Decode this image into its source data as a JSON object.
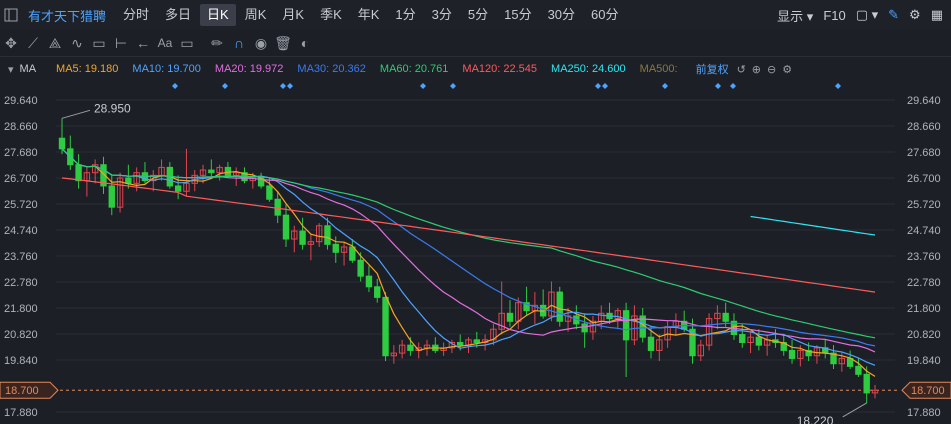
{
  "header": {
    "stock_name": "有才天下猎聘",
    "periods": [
      "分时",
      "多日",
      "日K",
      "周K",
      "月K",
      "季K",
      "年K",
      "1分",
      "3分",
      "5分",
      "15分",
      "30分",
      "60分"
    ],
    "active_period": "日K",
    "display_label": "显示",
    "f10_label": "F10"
  },
  "toolbar": {
    "icons": [
      "crosshair-icon",
      "line-tool-icon",
      "multi-line-tool-icon",
      "wave-tool-icon",
      "rect-tool-icon",
      "range-tool-icon",
      "arrow-tool-icon",
      "text-tool-icon",
      "comment-tool-icon",
      "pen-icon",
      "magnet-icon",
      "eye-icon",
      "trash-icon",
      "toggle-icon"
    ]
  },
  "ma_bar": {
    "label": "MA",
    "items": [
      {
        "text": "MA5: 19.180",
        "color": "#f5a623"
      },
      {
        "text": "MA10: 19.700",
        "color": "#4ea3ff"
      },
      {
        "text": "MA20: 19.972",
        "color": "#e36ee0"
      },
      {
        "text": "MA30: 20.362",
        "color": "#3a7bf0"
      },
      {
        "text": "MA60: 20.761",
        "color": "#2ecc71"
      },
      {
        "text": "MA120: 22.545",
        "color": "#ff5a5a"
      },
      {
        "text": "MA250: 24.600",
        "color": "#2ee6f0"
      },
      {
        "text": "MA500:",
        "color": "#8a7a3a"
      }
    ],
    "adjust_label": "前复权"
  },
  "chart_data": {
    "type": "candlestick",
    "y_ticks": [
      "29.640",
      "28.660",
      "27.680",
      "26.700",
      "25.720",
      "24.740",
      "23.760",
      "22.780",
      "21.800",
      "20.820",
      "19.840",
      "18.700",
      "17.880"
    ],
    "y_range": [
      17.88,
      29.64
    ],
    "current_price": "18.700",
    "max_label": "28.950",
    "min_label": "18.220",
    "colors": {
      "up": "#e0464f",
      "down": "#2ecc40",
      "grid": "#2a2e36",
      "bg": "#1c1f26"
    },
    "ohlc": [
      [
        28.2,
        28.95,
        27.6,
        27.8
      ],
      [
        27.8,
        28.3,
        27.0,
        27.2
      ],
      [
        27.2,
        27.6,
        26.3,
        26.6
      ],
      [
        26.6,
        27.1,
        26.0,
        26.9
      ],
      [
        26.9,
        27.4,
        26.5,
        27.2
      ],
      [
        27.2,
        27.5,
        26.1,
        26.4
      ],
      [
        26.4,
        26.8,
        25.3,
        25.6
      ],
      [
        25.6,
        26.9,
        25.4,
        26.7
      ],
      [
        26.7,
        27.2,
        26.3,
        26.5
      ],
      [
        26.5,
        27.1,
        26.2,
        26.9
      ],
      [
        26.9,
        27.3,
        26.5,
        26.6
      ],
      [
        26.6,
        27.0,
        26.2,
        26.8
      ],
      [
        26.8,
        27.4,
        26.6,
        27.1
      ],
      [
        27.1,
        27.3,
        26.3,
        26.4
      ],
      [
        26.4,
        26.8,
        25.9,
        26.2
      ],
      [
        26.2,
        27.8,
        26.0,
        26.5
      ],
      [
        26.5,
        27.0,
        26.2,
        26.8
      ],
      [
        26.8,
        27.2,
        26.5,
        27.0
      ],
      [
        27.0,
        27.4,
        26.7,
        26.9
      ],
      [
        26.9,
        27.2,
        26.6,
        27.1
      ],
      [
        27.1,
        27.3,
        26.7,
        26.8
      ],
      [
        26.8,
        27.1,
        26.4,
        26.9
      ],
      [
        26.9,
        27.1,
        26.5,
        26.6
      ],
      [
        26.6,
        26.9,
        26.3,
        26.7
      ],
      [
        26.7,
        26.9,
        26.3,
        26.4
      ],
      [
        26.4,
        26.7,
        25.8,
        25.9
      ],
      [
        25.9,
        26.2,
        25.0,
        25.3
      ],
      [
        25.3,
        25.7,
        24.1,
        24.4
      ],
      [
        24.4,
        24.9,
        23.9,
        24.7
      ],
      [
        24.7,
        25.2,
        24.0,
        24.2
      ],
      [
        24.2,
        24.6,
        23.6,
        24.3
      ],
      [
        24.3,
        25.0,
        24.1,
        24.9
      ],
      [
        24.9,
        25.2,
        24.0,
        24.2
      ],
      [
        24.2,
        24.5,
        23.5,
        23.9
      ],
      [
        23.9,
        24.3,
        23.4,
        24.1
      ],
      [
        24.1,
        24.4,
        23.5,
        23.6
      ],
      [
        23.6,
        23.9,
        22.8,
        23.0
      ],
      [
        23.0,
        23.4,
        22.4,
        22.6
      ],
      [
        22.6,
        22.9,
        22.0,
        22.2
      ],
      [
        22.2,
        22.4,
        19.8,
        20.0
      ],
      [
        20.0,
        20.4,
        19.7,
        20.1
      ],
      [
        20.1,
        20.6,
        19.9,
        20.4
      ],
      [
        20.4,
        20.7,
        20.0,
        20.2
      ],
      [
        20.2,
        20.5,
        19.9,
        20.3
      ],
      [
        20.3,
        20.6,
        20.0,
        20.4
      ],
      [
        20.4,
        20.7,
        20.1,
        20.2
      ],
      [
        20.2,
        20.5,
        20.0,
        20.3
      ],
      [
        20.3,
        20.6,
        20.1,
        20.5
      ],
      [
        20.5,
        20.8,
        20.2,
        20.4
      ],
      [
        20.4,
        20.7,
        20.1,
        20.6
      ],
      [
        20.6,
        20.9,
        20.3,
        20.5
      ],
      [
        20.5,
        20.8,
        20.2,
        20.6
      ],
      [
        20.6,
        21.2,
        20.4,
        21.0
      ],
      [
        21.0,
        22.8,
        20.8,
        21.6
      ],
      [
        21.6,
        22.1,
        21.1,
        21.3
      ],
      [
        21.3,
        22.2,
        21.0,
        22.0
      ],
      [
        22.0,
        22.6,
        21.5,
        21.7
      ],
      [
        21.7,
        22.4,
        21.2,
        21.9
      ],
      [
        21.9,
        22.5,
        21.4,
        21.5
      ],
      [
        21.5,
        22.8,
        21.3,
        22.4
      ],
      [
        22.4,
        22.6,
        21.1,
        21.3
      ],
      [
        21.3,
        21.8,
        20.9,
        21.5
      ],
      [
        21.5,
        21.9,
        21.0,
        21.2
      ],
      [
        21.2,
        21.6,
        20.3,
        20.9
      ],
      [
        20.9,
        21.5,
        20.6,
        21.3
      ],
      [
        21.3,
        21.9,
        21.0,
        21.6
      ],
      [
        21.6,
        22.0,
        21.2,
        21.4
      ],
      [
        21.4,
        21.8,
        21.0,
        21.7
      ],
      [
        21.7,
        22.0,
        19.2,
        20.6
      ],
      [
        20.6,
        21.9,
        20.4,
        21.5
      ],
      [
        21.5,
        21.8,
        20.5,
        20.7
      ],
      [
        20.7,
        21.1,
        19.9,
        20.2
      ],
      [
        20.2,
        20.8,
        19.8,
        20.6
      ],
      [
        20.6,
        21.3,
        20.3,
        21.1
      ],
      [
        21.1,
        21.6,
        20.8,
        21.3
      ],
      [
        21.3,
        21.7,
        20.9,
        21.0
      ],
      [
        21.0,
        21.4,
        19.7,
        20.0
      ],
      [
        20.0,
        20.6,
        19.8,
        20.4
      ],
      [
        20.4,
        21.6,
        20.2,
        21.4
      ],
      [
        21.4,
        21.9,
        21.0,
        21.6
      ],
      [
        21.6,
        22.0,
        21.1,
        21.3
      ],
      [
        21.3,
        21.6,
        20.6,
        20.8
      ],
      [
        20.8,
        21.2,
        20.3,
        20.5
      ],
      [
        20.5,
        20.9,
        20.1,
        20.7
      ],
      [
        20.7,
        21.0,
        20.2,
        20.4
      ],
      [
        20.4,
        20.8,
        20.0,
        20.6
      ],
      [
        20.6,
        21.0,
        20.3,
        20.5
      ],
      [
        20.5,
        20.8,
        20.0,
        20.2
      ],
      [
        20.2,
        20.6,
        19.7,
        19.9
      ],
      [
        19.9,
        20.4,
        19.6,
        20.2
      ],
      [
        20.2,
        20.5,
        19.8,
        20.0
      ],
      [
        20.0,
        20.4,
        19.7,
        20.3
      ],
      [
        20.3,
        20.6,
        19.9,
        20.1
      ],
      [
        20.1,
        20.4,
        19.5,
        19.7
      ],
      [
        19.7,
        20.1,
        19.4,
        19.9
      ],
      [
        19.9,
        20.2,
        19.5,
        19.6
      ],
      [
        19.6,
        19.9,
        19.2,
        19.3
      ],
      [
        19.3,
        19.6,
        18.22,
        18.6
      ],
      [
        18.6,
        18.9,
        18.4,
        18.7
      ]
    ],
    "ma_series": [
      {
        "name": "MA5",
        "color": "#f5a623"
      },
      {
        "name": "MA10",
        "color": "#4ea3ff"
      },
      {
        "name": "MA20",
        "color": "#e36ee0"
      },
      {
        "name": "MA30",
        "color": "#3a7bf0"
      },
      {
        "name": "MA60",
        "color": "#2ecc71"
      },
      {
        "name": "MA120",
        "color": "#ff5a5a"
      },
      {
        "name": "MA250",
        "color": "#2ee6f0"
      }
    ]
  }
}
